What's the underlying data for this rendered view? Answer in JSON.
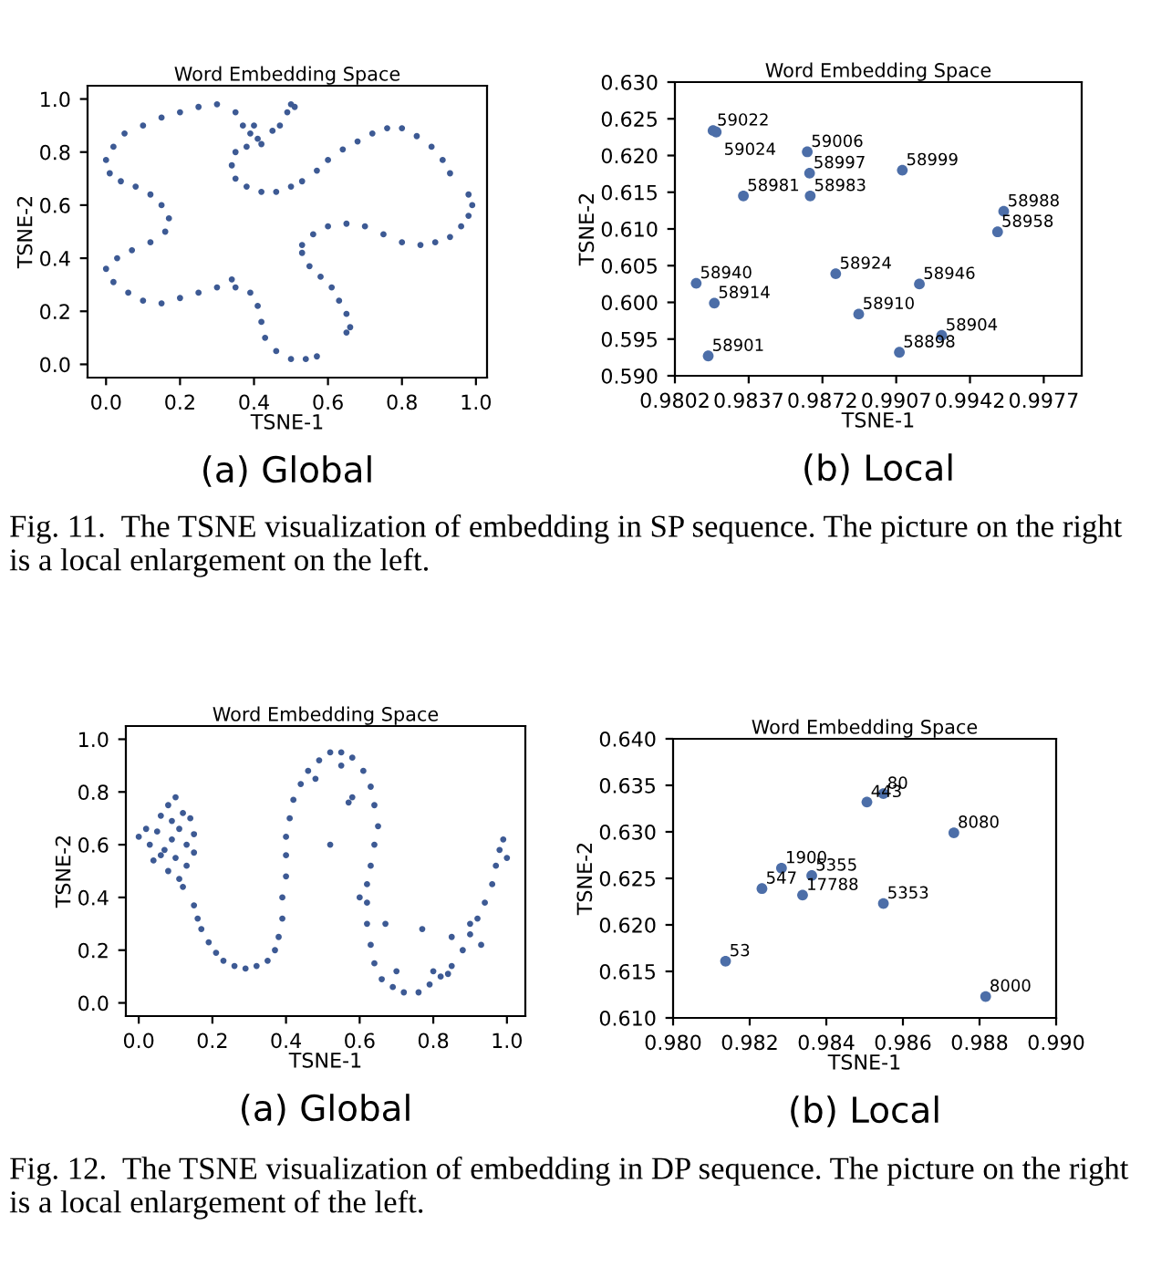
{
  "chart_data": [
    {
      "type": "scatter",
      "title": "Word Embedding Space",
      "xlabel": "TSNE-1",
      "ylabel": "TSNE-2",
      "color": "#3d5a94",
      "marker": "circle",
      "grid": false,
      "x": [
        0.4,
        0.35,
        0.3,
        0.25,
        0.2,
        0.15,
        0.1,
        0.05,
        0.02,
        0.0,
        0.01,
        0.04,
        0.08,
        0.12,
        0.15,
        0.17,
        0.16,
        0.12,
        0.07,
        0.03,
        0.0,
        0.02,
        0.06,
        0.1,
        0.15,
        0.2,
        0.25,
        0.3,
        0.35,
        0.39,
        0.41,
        0.42,
        0.43,
        0.46,
        0.5,
        0.54,
        0.57,
        0.37,
        0.39,
        0.41,
        0.38,
        0.42,
        0.35,
        0.45,
        0.47,
        0.5,
        0.51,
        0.49,
        0.34,
        0.34,
        0.35,
        0.38,
        0.42,
        0.46,
        0.5,
        0.53,
        0.57,
        0.6,
        0.64,
        0.68,
        0.72,
        0.76,
        0.8,
        0.84,
        0.88,
        0.91,
        0.93,
        0.98,
        0.99,
        0.98,
        0.96,
        0.93,
        0.89,
        0.85,
        0.8,
        0.75,
        0.7,
        0.65,
        0.6,
        0.56,
        0.53,
        0.53,
        0.55,
        0.58,
        0.61,
        0.63,
        0.65,
        0.66,
        0.65
      ],
      "values": [
        0.9,
        0.95,
        0.98,
        0.97,
        0.95,
        0.93,
        0.9,
        0.87,
        0.82,
        0.77,
        0.72,
        0.69,
        0.67,
        0.64,
        0.6,
        0.55,
        0.5,
        0.46,
        0.43,
        0.4,
        0.36,
        0.31,
        0.27,
        0.24,
        0.23,
        0.25,
        0.27,
        0.29,
        0.29,
        0.27,
        0.22,
        0.16,
        0.1,
        0.05,
        0.02,
        0.02,
        0.03,
        0.9,
        0.87,
        0.85,
        0.82,
        0.83,
        0.8,
        0.88,
        0.9,
        0.98,
        0.97,
        0.95,
        0.32,
        0.75,
        0.7,
        0.67,
        0.65,
        0.65,
        0.67,
        0.69,
        0.73,
        0.77,
        0.81,
        0.84,
        0.87,
        0.89,
        0.89,
        0.86,
        0.82,
        0.77,
        0.72,
        0.64,
        0.6,
        0.56,
        0.52,
        0.48,
        0.46,
        0.45,
        0.46,
        0.49,
        0.52,
        0.53,
        0.52,
        0.49,
        0.45,
        0.42,
        0.37,
        0.33,
        0.29,
        0.24,
        0.19,
        0.14,
        0.12
      ],
      "xlim": [
        -0.05,
        1.03
      ],
      "ylim": [
        -0.05,
        1.05
      ],
      "xticks": [
        {
          "value": 0,
          "label": "0.0"
        },
        0.2,
        0.4,
        0.6,
        0.8,
        {
          "value": 1,
          "label": "1.0"
        }
      ],
      "yticks": [
        {
          "value": 0,
          "label": "0.0"
        },
        0.2,
        0.4,
        0.6,
        0.8,
        {
          "value": 1,
          "label": "1.0"
        }
      ],
      "annotations": [
        "(a) Global"
      ]
    },
    {
      "type": "scatter",
      "title": "Word Embedding Space",
      "xlabel": "TSNE-1",
      "ylabel": "TSNE-2",
      "color": "#4c6ea8",
      "marker": "circle",
      "grid": false,
      "x": [
        0.98201,
        0.98216,
        0.98648,
        0.98659,
        0.99099,
        0.98345,
        0.98662,
        0.9958,
        0.99551,
        0.98121,
        0.98783,
        0.9918,
        0.98207,
        0.98892,
        0.99286,
        0.99085,
        0.98178
      ],
      "values": [
        0.6234,
        0.6232,
        0.6205,
        0.6176,
        0.618,
        0.6145,
        0.6145,
        0.6124,
        0.6096,
        0.6026,
        0.6039,
        0.6025,
        0.5999,
        0.5984,
        0.5955,
        0.5932,
        0.5927
      ],
      "xlim": [
        0.9802,
        0.9995
      ],
      "ylim": [
        0.59,
        0.63
      ],
      "xticks": [
        0.9802,
        0.9837,
        0.9872,
        0.9907,
        0.9942,
        0.9977
      ],
      "yticks": [
        {
          "value": 0.59,
          "label": "0.590"
        },
        {
          "value": 0.595,
          "label": "0.595"
        },
        {
          "value": 0.6,
          "label": "0.600"
        },
        {
          "value": 0.605,
          "label": "0.605"
        },
        {
          "value": 0.61,
          "label": "0.610"
        },
        {
          "value": 0.615,
          "label": "0.615"
        },
        {
          "value": 0.62,
          "label": "0.620"
        },
        {
          "value": 0.625,
          "label": "0.625"
        },
        {
          "value": 0.63,
          "label": "0.630"
        }
      ],
      "annotations": [
        "(b) Local",
        "Fig. 11.  The TSNE visualization of embedding in SP sequence. The picture on the right is a local enlargement on the left.",
        {
          "text": "59022",
          "x": 0.98201,
          "y": 0.6234
        },
        {
          "text": "59024",
          "x": 0.98216,
          "y": 0.6232
        },
        {
          "text": "59006",
          "x": 0.98648,
          "y": 0.6205
        },
        {
          "text": "58997",
          "x": 0.98659,
          "y": 0.6176
        },
        {
          "text": "58999",
          "x": 0.99099,
          "y": 0.618
        },
        {
          "text": "58981",
          "x": 0.98345,
          "y": 0.6145
        },
        {
          "text": "58983",
          "x": 0.98662,
          "y": 0.6145
        },
        {
          "text": "58988",
          "x": 0.9958,
          "y": 0.6124
        },
        {
          "text": "58958",
          "x": 0.99551,
          "y": 0.6096
        },
        {
          "text": "58940",
          "x": 0.98121,
          "y": 0.6026
        },
        {
          "text": "58924",
          "x": 0.98783,
          "y": 0.6039
        },
        {
          "text": "58946",
          "x": 0.9918,
          "y": 0.6025
        },
        {
          "text": "58914",
          "x": 0.98207,
          "y": 0.5999
        },
        {
          "text": "58910",
          "x": 0.98892,
          "y": 0.5984
        },
        {
          "text": "58904",
          "x": 0.99286,
          "y": 0.5955
        },
        {
          "text": "58898",
          "x": 0.99085,
          "y": 0.5932
        },
        {
          "text": "58901",
          "x": 0.98178,
          "y": 0.5927
        }
      ]
    },
    {
      "type": "scatter",
      "title": "Word Embedding Space",
      "xlabel": "TSNE-1",
      "ylabel": "TSNE-2",
      "color": "#3d5a94",
      "marker": "circle",
      "grid": false,
      "x": [
        0.09,
        0.05,
        0.13,
        0.03,
        0.15,
        0.08,
        0.1,
        0.12,
        0.06,
        0.04,
        0.08,
        0.11,
        0.13,
        0.15,
        0.02,
        0.07,
        0.11,
        0.09,
        0.06,
        0.1,
        0.12,
        0.14,
        0.0,
        0.15,
        0.16,
        0.17,
        0.19,
        0.21,
        0.23,
        0.26,
        0.29,
        0.32,
        0.35,
        0.37,
        0.38,
        0.39,
        0.39,
        0.4,
        0.4,
        0.4,
        0.41,
        0.42,
        0.44,
        0.46,
        0.49,
        0.52,
        0.55,
        0.58,
        0.61,
        0.63,
        0.64,
        0.65,
        0.64,
        0.63,
        0.62,
        0.62,
        0.62,
        0.63,
        0.64,
        0.66,
        0.69,
        0.72,
        0.76,
        0.79,
        0.82,
        0.85,
        0.88,
        0.9,
        0.92,
        0.94,
        0.96,
        0.97,
        0.98,
        0.99,
        1.0,
        0.52,
        0.57,
        0.58,
        0.48,
        0.55,
        0.6,
        0.67,
        0.7,
        0.8,
        0.84,
        0.9,
        0.93,
        0.85,
        0.77
      ],
      "values": [
        0.62,
        0.65,
        0.6,
        0.6,
        0.64,
        0.75,
        0.78,
        0.72,
        0.71,
        0.54,
        0.5,
        0.47,
        0.52,
        0.57,
        0.66,
        0.58,
        0.66,
        0.69,
        0.56,
        0.55,
        0.44,
        0.7,
        0.63,
        0.37,
        0.32,
        0.28,
        0.23,
        0.19,
        0.16,
        0.14,
        0.13,
        0.14,
        0.16,
        0.2,
        0.25,
        0.32,
        0.4,
        0.48,
        0.56,
        0.63,
        0.7,
        0.77,
        0.83,
        0.88,
        0.92,
        0.95,
        0.95,
        0.93,
        0.88,
        0.82,
        0.75,
        0.67,
        0.6,
        0.52,
        0.45,
        0.38,
        0.3,
        0.22,
        0.15,
        0.09,
        0.06,
        0.04,
        0.04,
        0.07,
        0.1,
        0.14,
        0.2,
        0.26,
        0.32,
        0.38,
        0.45,
        0.52,
        0.58,
        0.62,
        0.55,
        0.6,
        0.76,
        0.78,
        0.85,
        0.9,
        0.4,
        0.3,
        0.12,
        0.12,
        0.11,
        0.3,
        0.22,
        0.25,
        0.28
      ],
      "xlim": [
        -0.035,
        1.05
      ],
      "ylim": [
        -0.05,
        1.05
      ],
      "xticks": [
        {
          "value": 0,
          "label": "0.0"
        },
        0.2,
        0.4,
        0.6,
        0.8,
        {
          "value": 1,
          "label": "1.0"
        }
      ],
      "yticks": [
        {
          "value": 0,
          "label": "0.0"
        },
        0.2,
        0.4,
        0.6,
        0.8,
        {
          "value": 1,
          "label": "1.0"
        }
      ],
      "annotations": [
        "(a) Global"
      ]
    },
    {
      "type": "scatter",
      "title": "Word Embedding Space",
      "xlabel": "TSNE-1",
      "ylabel": "TSNE-2",
      "color": "#4c6ea8",
      "marker": "circle",
      "grid": false,
      "x": [
        0.98506,
        0.98549,
        0.98733,
        0.98283,
        0.98362,
        0.98232,
        0.98338,
        0.98549,
        0.98137,
        0.98816
      ],
      "values": [
        0.6332,
        0.6341,
        0.6299,
        0.6261,
        0.6253,
        0.6239,
        0.6232,
        0.6223,
        0.6161,
        0.6123
      ],
      "xlim": [
        0.98,
        0.99
      ],
      "ylim": [
        0.61,
        0.64
      ],
      "xticks": [
        {
          "value": 0.98,
          "label": "0.980"
        },
        {
          "value": 0.982,
          "label": "0.982"
        },
        {
          "value": 0.984,
          "label": "0.984"
        },
        {
          "value": 0.986,
          "label": "0.986"
        },
        {
          "value": 0.988,
          "label": "0.988"
        },
        {
          "value": 0.99,
          "label": "0.990"
        }
      ],
      "yticks": [
        {
          "value": 0.61,
          "label": "0.610"
        },
        {
          "value": 0.615,
          "label": "0.615"
        },
        {
          "value": 0.62,
          "label": "0.620"
        },
        {
          "value": 0.625,
          "label": "0.625"
        },
        {
          "value": 0.63,
          "label": "0.630"
        },
        {
          "value": 0.635,
          "label": "0.635"
        },
        {
          "value": 0.64,
          "label": "0.640"
        }
      ],
      "annotations": [
        "(b) Local",
        "Fig. 12.  The TSNE visualization of embedding in DP sequence. The picture on the right is a local enlargement of the left.",
        {
          "text": "443",
          "x": 0.98506,
          "y": 0.6332
        },
        {
          "text": "80",
          "x": 0.98549,
          "y": 0.6341
        },
        {
          "text": "8080",
          "x": 0.98733,
          "y": 0.6299
        },
        {
          "text": "1900",
          "x": 0.98283,
          "y": 0.6261
        },
        {
          "text": "5355",
          "x": 0.98362,
          "y": 0.6253
        },
        {
          "text": "547",
          "x": 0.98232,
          "y": 0.6239
        },
        {
          "text": "17788",
          "x": 0.98338,
          "y": 0.6232
        },
        {
          "text": "5353",
          "x": 0.98549,
          "y": 0.6223
        },
        {
          "text": "53",
          "x": 0.98137,
          "y": 0.6161
        },
        {
          "text": "8000",
          "x": 0.98816,
          "y": 0.6123
        }
      ]
    }
  ]
}
